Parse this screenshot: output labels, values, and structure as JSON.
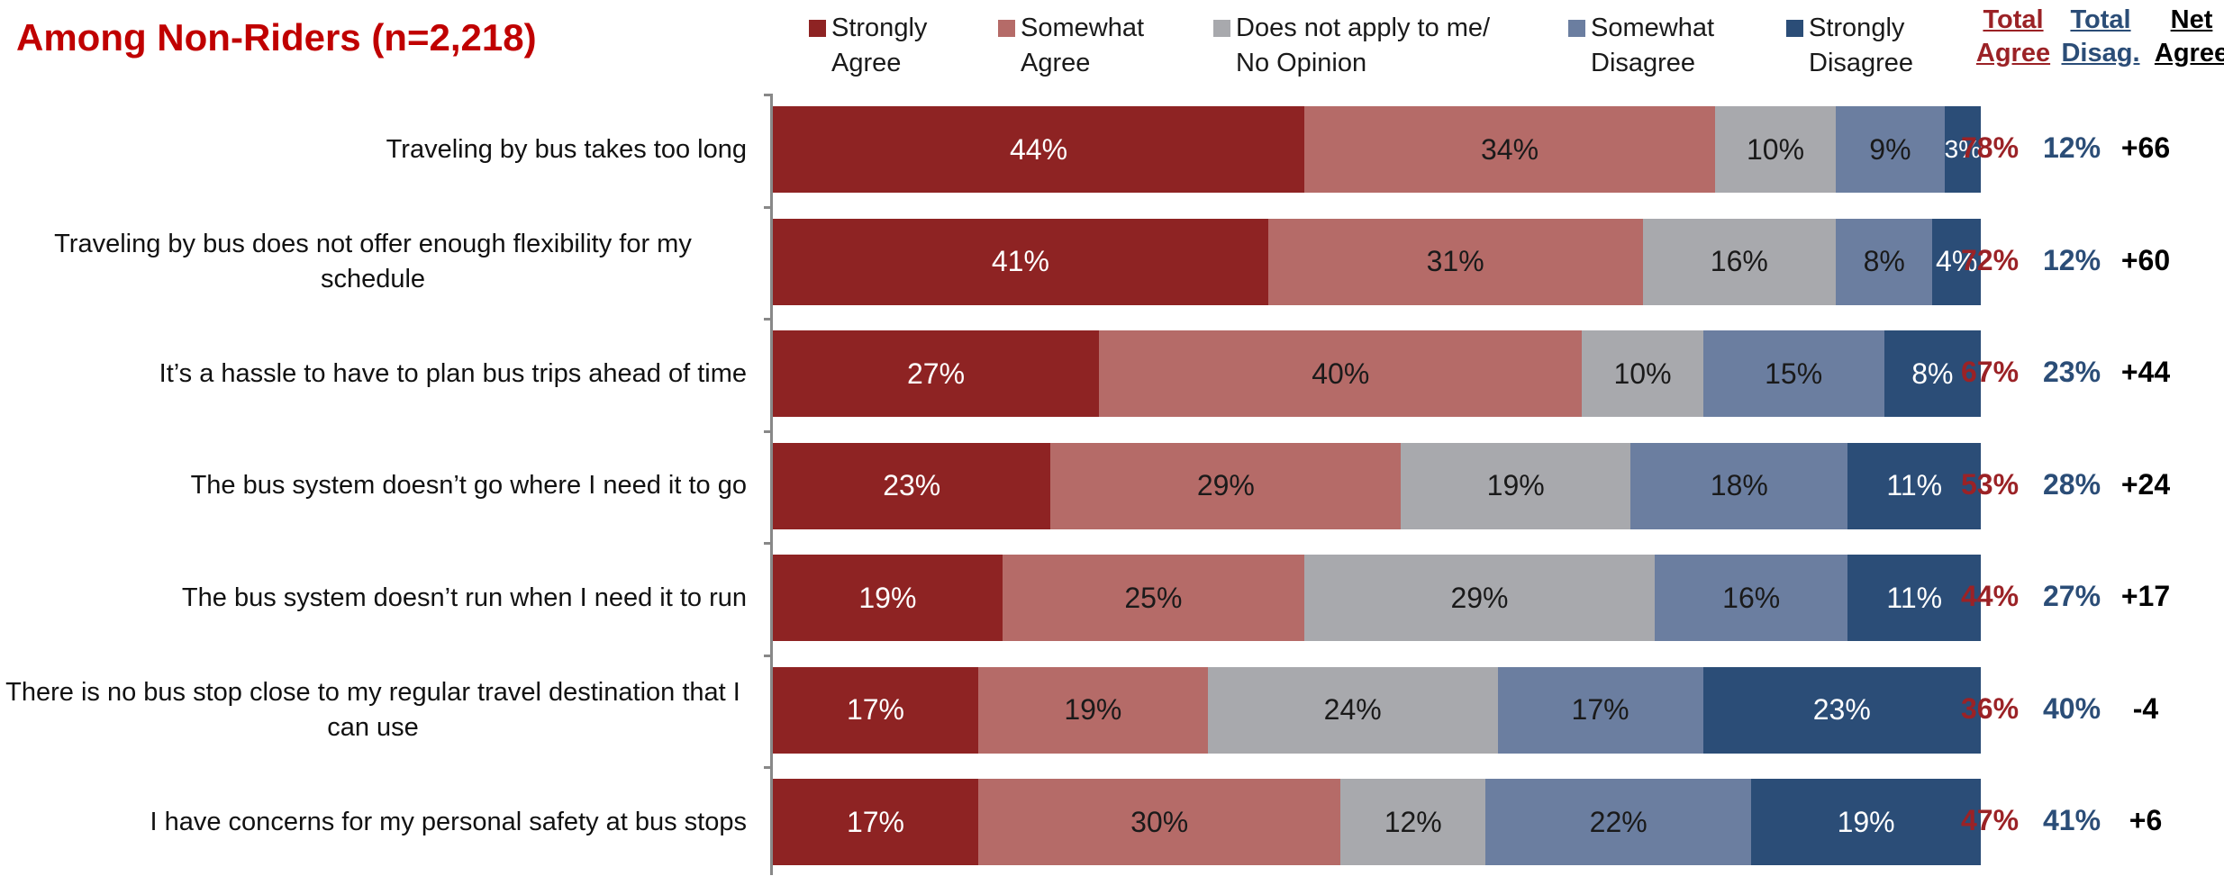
{
  "header": {
    "title": "Among Non-Riders (n=2,218)"
  },
  "legend": [
    {
      "label": "Strongly\nAgree",
      "color": "#8e2323"
    },
    {
      "label": "Somewhat\nAgree",
      "color": "#b56b68"
    },
    {
      "label": "Does not apply to me/\nNo Opinion",
      "color": "#a8a9ad"
    },
    {
      "label": "Somewhat\nDisagree",
      "color": "#6b7ea0"
    },
    {
      "label": "Strongly\nDisagree",
      "color": "#2b4d77"
    }
  ],
  "columns": {
    "agree": {
      "label": "Total\nAgree",
      "color": "#9b2226"
    },
    "disagree": {
      "label": "Total\nDisag.",
      "color": "#2b4d77"
    },
    "net": {
      "label": "Net\nAgree",
      "color": "#000000"
    }
  },
  "chart_data": {
    "type": "bar",
    "orientation": "horizontal",
    "stacked": true,
    "title": "Among Non-Riders (n=2,218)",
    "categories": [
      "Traveling by bus takes too long",
      "Traveling by bus does not offer enough flexibility for my schedule",
      "It’s a hassle to have to plan bus trips ahead of time",
      "The bus system doesn’t go where I need it to go",
      "The bus system doesn’t run when I need it to run",
      "There is no bus stop close to my regular travel destination that I can use",
      "I have concerns for my personal safety at bus stops"
    ],
    "series": [
      {
        "name": "Strongly Agree",
        "color": "#8e2323",
        "text_color": "#ffffff",
        "values": [
          44,
          41,
          27,
          23,
          19,
          17,
          17
        ]
      },
      {
        "name": "Somewhat Agree",
        "color": "#b56b68",
        "text_color": "#1a1a1a",
        "values": [
          34,
          31,
          40,
          29,
          25,
          19,
          30
        ]
      },
      {
        "name": "Does not apply to me/ No Opinion",
        "color": "#a8a9ad",
        "text_color": "#1a1a1a",
        "values": [
          10,
          16,
          10,
          19,
          29,
          24,
          12
        ]
      },
      {
        "name": "Somewhat Disagree",
        "color": "#6b7ea0",
        "text_color": "#1a1a1a",
        "values": [
          9,
          8,
          15,
          18,
          16,
          17,
          22
        ]
      },
      {
        "name": "Strongly Disagree",
        "color": "#2b4d77",
        "text_color": "#ffffff",
        "values": [
          3,
          4,
          8,
          11,
          11,
          23,
          19
        ]
      }
    ],
    "total_agree": [
      "78%",
      "72%",
      "67%",
      "53%",
      "44%",
      "36%",
      "47%"
    ],
    "total_disagree": [
      "12%",
      "12%",
      "23%",
      "28%",
      "27%",
      "40%",
      "41%"
    ],
    "net_agree": [
      "+66",
      "+60",
      "+44",
      "+24",
      "+17",
      "-4",
      "+6"
    ],
    "value_suffix": "%",
    "xlim": [
      0,
      100
    ],
    "legend_position": "top"
  }
}
